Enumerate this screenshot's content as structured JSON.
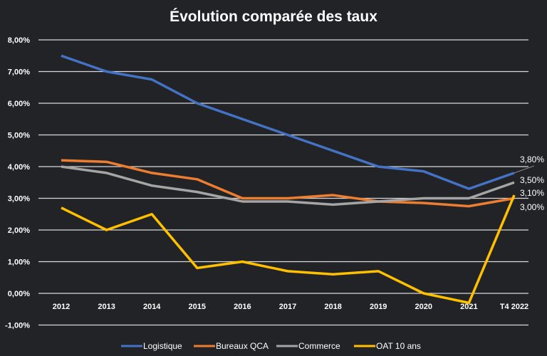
{
  "chart_data": {
    "type": "line",
    "title": "Évolution comparée des taux",
    "categories": [
      "2012",
      "2013",
      "2014",
      "2015",
      "2016",
      "2017",
      "2018",
      "2019",
      "2020",
      "2021",
      "T4 2022"
    ],
    "ylim": [
      -1,
      8
    ],
    "yticks": [
      "-1,00%",
      "0,00%",
      "1,00%",
      "2,00%",
      "3,00%",
      "4,00%",
      "5,00%",
      "6,00%",
      "7,00%",
      "8,00%"
    ],
    "grid": true,
    "legend_position": "bottom",
    "series": [
      {
        "name": "Logistique",
        "color": "#4472c4",
        "values": [
          7.5,
          7.0,
          6.75,
          6.0,
          5.5,
          5.0,
          4.5,
          4.0,
          3.85,
          3.3,
          3.8
        ],
        "end_label": "3,80%"
      },
      {
        "name": "Bureaux QCA",
        "color": "#ed7d31",
        "values": [
          4.2,
          4.15,
          3.8,
          3.6,
          3.0,
          3.0,
          3.1,
          2.9,
          2.85,
          2.75,
          3.0
        ],
        "end_label": "3,00%"
      },
      {
        "name": "Commerce",
        "color": "#a5a5a5",
        "values": [
          4.0,
          3.8,
          3.4,
          3.2,
          2.9,
          2.9,
          2.8,
          2.9,
          3.0,
          3.0,
          3.5
        ],
        "end_label": "3,50%"
      },
      {
        "name": "OAT 10 ans",
        "color": "#ffc000",
        "values": [
          2.7,
          2.0,
          2.5,
          0.8,
          1.0,
          0.7,
          0.6,
          0.7,
          0.0,
          -0.3,
          3.1
        ],
        "end_label": "3,10%"
      }
    ]
  }
}
